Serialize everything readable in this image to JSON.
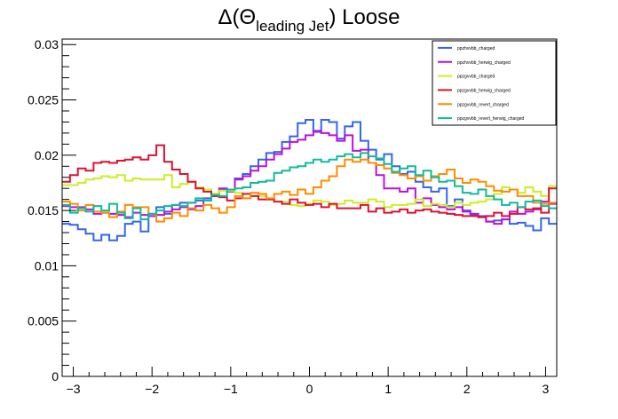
{
  "chart_data": {
    "type": "line",
    "title": {
      "main": "Δ(Θ",
      "sub": "leading Jet",
      "suffix": ") Loose"
    },
    "xlabel": "",
    "ylabel": "",
    "xlim": [
      -3.1416,
      3.1416
    ],
    "ylim": [
      0,
      0.0305
    ],
    "xticks": [
      -3,
      -2,
      -1,
      0,
      1,
      2,
      3
    ],
    "yticks": [
      0,
      0.005,
      0.01,
      0.015,
      0.02,
      0.025,
      0.03
    ],
    "ytick_labels": [
      "0",
      "0.005",
      "0.01",
      "0.015",
      "0.02",
      "0.025",
      "0.03"
    ],
    "grid": false,
    "legend_position": "top-right",
    "bins": 63,
    "series": [
      {
        "name": "ppzhvvbb_charged",
        "color": "#3366ee",
        "values": [
          0.0138,
          0.0137,
          0.0133,
          0.0129,
          0.0123,
          0.0128,
          0.0123,
          0.0127,
          0.0138,
          0.014,
          0.0131,
          0.0147,
          0.0153,
          0.0147,
          0.0155,
          0.0157,
          0.0157,
          0.0159,
          0.0161,
          0.0165,
          0.0169,
          0.0167,
          0.0179,
          0.0183,
          0.019,
          0.0196,
          0.0202,
          0.0203,
          0.0212,
          0.0217,
          0.0229,
          0.0232,
          0.0221,
          0.0232,
          0.023,
          0.0215,
          0.0226,
          0.023,
          0.0213,
          0.0205,
          0.0196,
          0.0201,
          0.019,
          0.0183,
          0.0185,
          0.0176,
          0.0171,
          0.0167,
          0.017,
          0.0154,
          0.016,
          0.015,
          0.0146,
          0.0145,
          0.014,
          0.0141,
          0.0142,
          0.0138,
          0.0139,
          0.0136,
          0.0132,
          0.0143,
          0.0138
        ]
      },
      {
        "name": "ppzhvvbb_herwig_charged",
        "color": "#bb11dd",
        "values": [
          0.0154,
          0.0153,
          0.0153,
          0.0151,
          0.0147,
          0.0148,
          0.0147,
          0.0146,
          0.0144,
          0.0148,
          0.0146,
          0.0145,
          0.0146,
          0.0149,
          0.0151,
          0.0153,
          0.0151,
          0.0154,
          0.0159,
          0.0163,
          0.017,
          0.0168,
          0.0178,
          0.0181,
          0.0186,
          0.019,
          0.0196,
          0.0201,
          0.0206,
          0.0212,
          0.0214,
          0.0218,
          0.0222,
          0.022,
          0.0218,
          0.0213,
          0.0218,
          0.0204,
          0.0205,
          0.0193,
          0.0182,
          0.017,
          0.017,
          0.0167,
          0.017,
          0.0157,
          0.0161,
          0.0155,
          0.0153,
          0.0151,
          0.0153,
          0.0149,
          0.0147,
          0.0144,
          0.014,
          0.0138,
          0.0142,
          0.0149,
          0.0147,
          0.0149,
          0.0151,
          0.0158,
          0.0156
        ]
      },
      {
        "name": "ppzgvvbb_charged",
        "color": "#ccee22",
        "values": [
          0.0173,
          0.0173,
          0.0175,
          0.0178,
          0.0179,
          0.0181,
          0.018,
          0.0182,
          0.0177,
          0.0179,
          0.0178,
          0.0178,
          0.0178,
          0.0182,
          0.0171,
          0.0174,
          0.0176,
          0.0171,
          0.0169,
          0.0165,
          0.0168,
          0.0168,
          0.0166,
          0.0161,
          0.0163,
          0.0163,
          0.016,
          0.0158,
          0.0158,
          0.0155,
          0.0154,
          0.0156,
          0.0159,
          0.0158,
          0.0155,
          0.0156,
          0.0159,
          0.0157,
          0.0157,
          0.016,
          0.0158,
          0.0153,
          0.0155,
          0.0155,
          0.0156,
          0.016,
          0.0154,
          0.0156,
          0.0155,
          0.0153,
          0.0157,
          0.0155,
          0.0157,
          0.0158,
          0.016,
          0.0165,
          0.0171,
          0.0169,
          0.0166,
          0.0171,
          0.0167,
          0.0163,
          0.0172
        ]
      },
      {
        "name": "ppzgvvbb_herwig_charged",
        "color": "#dd1133",
        "values": [
          0.0176,
          0.0182,
          0.0188,
          0.0186,
          0.0193,
          0.0194,
          0.0193,
          0.0195,
          0.0196,
          0.0198,
          0.0196,
          0.02,
          0.0209,
          0.0194,
          0.0187,
          0.0183,
          0.0176,
          0.017,
          0.0167,
          0.0163,
          0.0162,
          0.0159,
          0.0161,
          0.0165,
          0.0163,
          0.016,
          0.016,
          0.0158,
          0.0156,
          0.016,
          0.0157,
          0.0155,
          0.0156,
          0.0153,
          0.0156,
          0.0152,
          0.0152,
          0.0152,
          0.0155,
          0.0149,
          0.0152,
          0.0148,
          0.0149,
          0.0151,
          0.0148,
          0.015,
          0.0151,
          0.0149,
          0.0148,
          0.0147,
          0.0146,
          0.0145,
          0.0145,
          0.0144,
          0.0145,
          0.0148,
          0.0145,
          0.0147,
          0.0153,
          0.0151,
          0.0152,
          0.0148,
          0.017
        ]
      },
      {
        "name": "ppzgvvbb_revert_charged",
        "color": "#ff8c00",
        "values": [
          0.0158,
          0.0156,
          0.015,
          0.0155,
          0.0149,
          0.0148,
          0.0144,
          0.0149,
          0.0155,
          0.0153,
          0.0153,
          0.0147,
          0.014,
          0.0143,
          0.0148,
          0.0145,
          0.0152,
          0.015,
          0.0155,
          0.0152,
          0.0148,
          0.0153,
          0.0163,
          0.0161,
          0.0166,
          0.0165,
          0.0161,
          0.0165,
          0.0167,
          0.0164,
          0.0169,
          0.0165,
          0.0171,
          0.0177,
          0.0181,
          0.019,
          0.0196,
          0.0194,
          0.0196,
          0.0193,
          0.0191,
          0.0188,
          0.0184,
          0.0182,
          0.0179,
          0.0181,
          0.0177,
          0.0181,
          0.0183,
          0.0187,
          0.0179,
          0.0175,
          0.0178,
          0.0176,
          0.0172,
          0.0168,
          0.0167,
          0.0169,
          0.0163,
          0.0163,
          0.0157,
          0.0156,
          0.0157
        ]
      },
      {
        "name": "ppzgvvbb_revert_herwig_charged",
        "color": "#11bb99",
        "values": [
          0.0155,
          0.0148,
          0.0152,
          0.0149,
          0.0154,
          0.015,
          0.0156,
          0.0148,
          0.0143,
          0.0152,
          0.0142,
          0.0147,
          0.015,
          0.0154,
          0.0155,
          0.0154,
          0.0157,
          0.0161,
          0.0159,
          0.0164,
          0.0163,
          0.0169,
          0.017,
          0.0171,
          0.0175,
          0.0176,
          0.0177,
          0.0184,
          0.0186,
          0.0189,
          0.019,
          0.0193,
          0.0196,
          0.0194,
          0.0196,
          0.0199,
          0.0201,
          0.0198,
          0.0202,
          0.0199,
          0.0197,
          0.0192,
          0.0185,
          0.0188,
          0.019,
          0.0182,
          0.0186,
          0.018,
          0.0176,
          0.0177,
          0.0172,
          0.0166,
          0.0165,
          0.0169,
          0.0163,
          0.016,
          0.0155,
          0.0157,
          0.0153,
          0.0158,
          0.0159,
          0.0154,
          0.0152
        ]
      }
    ]
  }
}
